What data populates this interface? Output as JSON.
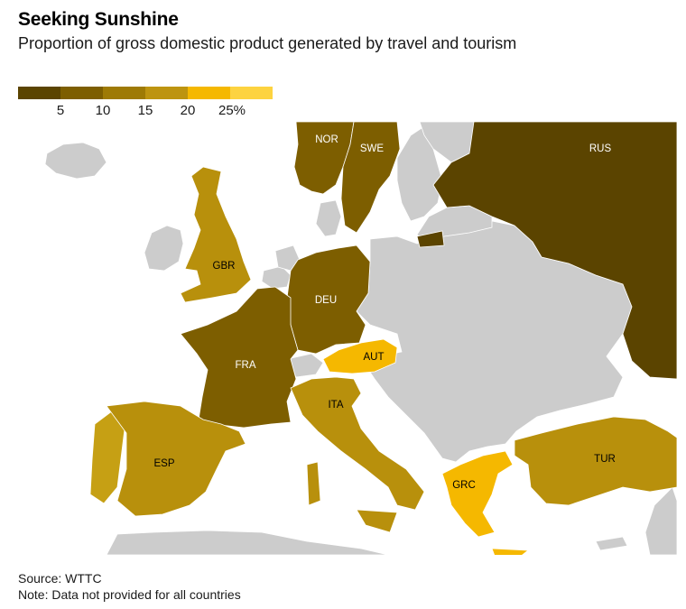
{
  "title": "Seeking Sunshine",
  "subtitle": "Proportion of gross domestic product generated by travel and tourism",
  "legend": {
    "colors": [
      "#5b4400",
      "#7d5e00",
      "#9e7a05",
      "#bd9410",
      "#f5b800",
      "#fdd340"
    ],
    "labels": [
      "5",
      "10",
      "15",
      "20",
      "25%"
    ]
  },
  "map": {
    "no_data_color": "#cccccc",
    "water_color": "#ffffff",
    "countries": [
      {
        "code": "RUS",
        "color": "#5b4400",
        "label_color": "#ffffff"
      },
      {
        "code": "NOR",
        "color": "#7d5e00",
        "label_color": "#ffffff"
      },
      {
        "code": "SWE",
        "color": "#7d5e00",
        "label_color": "#ffffff"
      },
      {
        "code": "DEU",
        "color": "#7d5e00",
        "label_color": "#ffffff"
      },
      {
        "code": "FRA",
        "color": "#7d5e00",
        "label_color": "#ffffff"
      },
      {
        "code": "GBR",
        "color": "#b8900c",
        "label_color": "#000000"
      },
      {
        "code": "ITA",
        "color": "#b8900c",
        "label_color": "#000000"
      },
      {
        "code": "ESP",
        "color": "#b8900c",
        "label_color": "#000000"
      },
      {
        "code": "TUR",
        "color": "#b8900c",
        "label_color": "#000000"
      },
      {
        "code": "AUT",
        "color": "#f5b800",
        "label_color": "#000000"
      },
      {
        "code": "GRC",
        "color": "#f5b800",
        "label_color": "#000000"
      }
    ]
  },
  "source": "Source: WTTC",
  "note": "Note: Data not provided for all countries"
}
